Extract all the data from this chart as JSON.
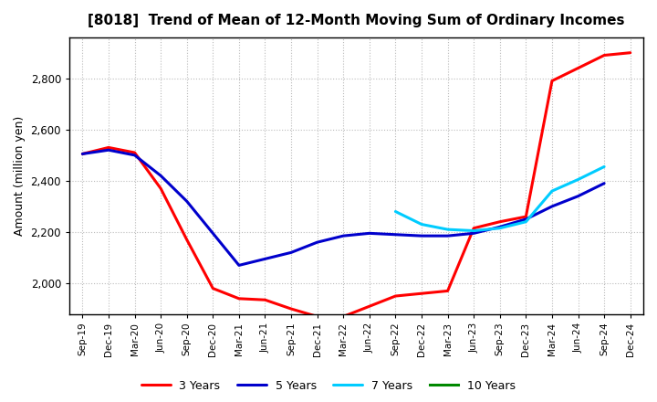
{
  "title": "[8018]  Trend of Mean of 12-Month Moving Sum of Ordinary Incomes",
  "ylabel": "Amount (million yen)",
  "background_color": "#ffffff",
  "grid_color": "#bbbbbb",
  "x_labels": [
    "Sep-19",
    "Dec-19",
    "Mar-20",
    "Jun-20",
    "Sep-20",
    "Dec-20",
    "Mar-21",
    "Jun-21",
    "Sep-21",
    "Dec-21",
    "Mar-22",
    "Jun-22",
    "Sep-22",
    "Dec-22",
    "Mar-23",
    "Jun-23",
    "Sep-23",
    "Dec-23",
    "Mar-24",
    "Jun-24",
    "Sep-24",
    "Dec-24"
  ],
  "ylim": [
    1880,
    2960
  ],
  "yticks": [
    2000,
    2200,
    2400,
    2600,
    2800
  ],
  "series": {
    "3 Years": {
      "color": "#ff0000",
      "data": [
        2505,
        2530,
        2510,
        2370,
        2170,
        1980,
        1940,
        1935,
        1900,
        1870,
        1870,
        1910,
        1950,
        1960,
        1970,
        2215,
        2240,
        2260,
        2790,
        2840,
        2890,
        2900
      ]
    },
    "5 Years": {
      "color": "#0000cc",
      "data": [
        2505,
        2520,
        2500,
        2420,
        2320,
        2195,
        2070,
        2095,
        2120,
        2160,
        2185,
        2195,
        2190,
        2185,
        2185,
        2195,
        2220,
        2250,
        2300,
        2340,
        2390,
        null
      ]
    },
    "7 Years": {
      "color": "#00ccff",
      "data": [
        null,
        null,
        null,
        null,
        null,
        null,
        null,
        null,
        null,
        null,
        null,
        null,
        2280,
        2230,
        2210,
        2205,
        2215,
        2240,
        2360,
        2405,
        2455,
        null
      ]
    },
    "10 Years": {
      "color": "#008800",
      "data": [
        null,
        null,
        null,
        null,
        null,
        null,
        null,
        null,
        null,
        null,
        null,
        null,
        null,
        null,
        null,
        null,
        null,
        null,
        null,
        null,
        null,
        null
      ]
    }
  }
}
